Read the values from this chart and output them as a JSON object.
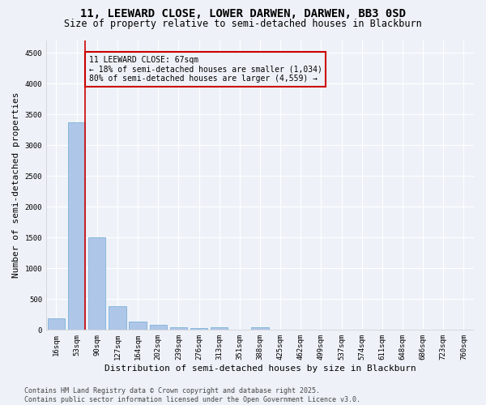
{
  "title_line1": "11, LEEWARD CLOSE, LOWER DARWEN, DARWEN, BB3 0SD",
  "title_line2": "Size of property relative to semi-detached houses in Blackburn",
  "xlabel": "Distribution of semi-detached houses by size in Blackburn",
  "ylabel": "Number of semi-detached properties",
  "categories": [
    "16sqm",
    "53sqm",
    "90sqm",
    "127sqm",
    "164sqm",
    "202sqm",
    "239sqm",
    "276sqm",
    "313sqm",
    "351sqm",
    "388sqm",
    "425sqm",
    "462sqm",
    "499sqm",
    "537sqm",
    "574sqm",
    "611sqm",
    "648sqm",
    "686sqm",
    "723sqm",
    "760sqm"
  ],
  "values": [
    185,
    3370,
    1500,
    390,
    130,
    80,
    50,
    35,
    50,
    0,
    45,
    0,
    0,
    0,
    0,
    0,
    0,
    0,
    0,
    0,
    0
  ],
  "bar_color": "#aec6e8",
  "bar_edge_color": "#6aaad4",
  "vline_color": "#cc0000",
  "annotation_box_text": "11 LEEWARD CLOSE: 67sqm\n← 18% of semi-detached houses are smaller (1,034)\n80% of semi-detached houses are larger (4,559) →",
  "annotation_box_color": "#cc0000",
  "ylim": [
    0,
    4700
  ],
  "yticks": [
    0,
    500,
    1000,
    1500,
    2000,
    2500,
    3000,
    3500,
    4000,
    4500
  ],
  "footer_line1": "Contains HM Land Registry data © Crown copyright and database right 2025.",
  "footer_line2": "Contains public sector information licensed under the Open Government Licence v3.0.",
  "background_color": "#eef2f8",
  "grid_color": "#ffffff",
  "title_fontsize": 10,
  "subtitle_fontsize": 8.5,
  "axis_label_fontsize": 8,
  "tick_fontsize": 6.5,
  "annotation_fontsize": 7,
  "footer_fontsize": 6
}
